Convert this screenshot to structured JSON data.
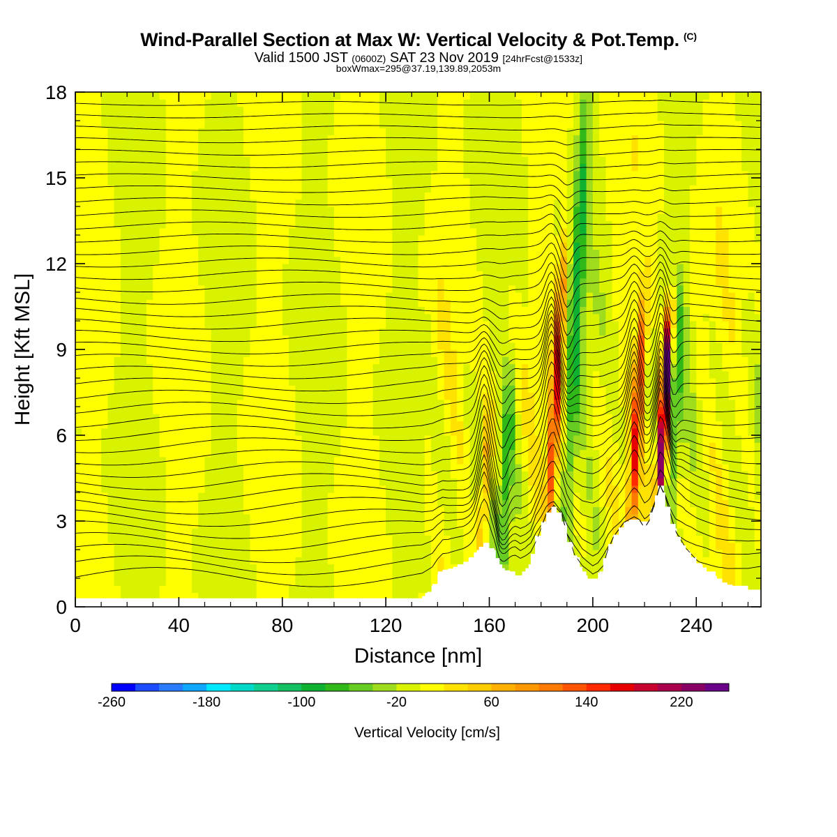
{
  "header": {
    "title": "Wind-Parallel Section at Max W: Vertical Velocity & Pot.Temp.",
    "copyright_mark": "(C)",
    "valid_prefix": "Valid 1500 JST",
    "valid_utc": "(0600Z)",
    "valid_date": "SAT 23 Nov 2019",
    "forecast_info": "[24hrFcst@1533z]",
    "box_info": "boxWmax=295@37.19,139.89,2053m"
  },
  "chart_data": {
    "type": "heatmap",
    "xlabel": "Distance [nm]",
    "ylabel": "Height [Kft MSL]",
    "xlim": [
      0,
      265
    ],
    "ylim": [
      0,
      18
    ],
    "x_ticks": [
      "0",
      "40",
      "80",
      "120",
      "160",
      "200",
      "240"
    ],
    "y_ticks": [
      "0",
      "3",
      "6",
      "9",
      "12",
      "15",
      "18"
    ],
    "colorbar": {
      "label": "Vertical Velocity [cm/s]",
      "min": -260,
      "max": 260,
      "step": 20,
      "tick_labels": [
        "-260",
        "-180",
        "-100",
        "-20",
        "60",
        "140",
        "220"
      ],
      "colors": [
        "#0000ff",
        "#1c4cff",
        "#2a7cff",
        "#10a8ff",
        "#00e8ff",
        "#00d8c8",
        "#10d090",
        "#14c060",
        "#10b030",
        "#30b818",
        "#66cc22",
        "#a0dc1e",
        "#d8f200",
        "#ffff00",
        "#ffe200",
        "#ffcc00",
        "#ffb000",
        "#ff9800",
        "#ff7a00",
        "#ff5400",
        "#ff2a00",
        "#e80000",
        "#c80030",
        "#a8004a",
        "#880064",
        "#6a0088"
      ]
    },
    "terrain_profile": {
      "x_nm": [
        0,
        134,
        138,
        140,
        142,
        144,
        150,
        154,
        158,
        162,
        164,
        166,
        170,
        172,
        174,
        176,
        178,
        180,
        182,
        185,
        188,
        190,
        193,
        196,
        198,
        200,
        202,
        204,
        206,
        208,
        212,
        214,
        216,
        218,
        220,
        222,
        224,
        226,
        228,
        230,
        232,
        236,
        240,
        244,
        248,
        252,
        256,
        260,
        265
      ],
      "height_kft": [
        0.3,
        0.3,
        0.6,
        1.0,
        1.3,
        1.3,
        1.5,
        1.8,
        2.2,
        2.0,
        1.4,
        1.3,
        1.2,
        1.0,
        1.2,
        1.5,
        2.2,
        2.7,
        3.2,
        3.5,
        3.2,
        2.5,
        1.8,
        1.2,
        1.0,
        0.8,
        1.0,
        1.4,
        2.0,
        2.4,
        2.9,
        3.0,
        3.1,
        3.0,
        2.7,
        3.0,
        3.6,
        4.2,
        3.8,
        3.2,
        2.6,
        2.0,
        1.6,
        1.3,
        1.0,
        0.8,
        0.7,
        0.6,
        0.6
      ]
    },
    "updraft_cores": [
      {
        "x": 157,
        "y_bottom": 2.0,
        "y_top": 6.5,
        "peak_cm_s": 80
      },
      {
        "x": 183,
        "y_bottom": 3.0,
        "y_top": 12.0,
        "peak_cm_s": 150
      },
      {
        "x": 215,
        "y_bottom": 3.0,
        "y_top": 10.5,
        "peak_cm_s": 150
      },
      {
        "x": 226,
        "y_bottom": 4.0,
        "y_top": 10.0,
        "peak_cm_s": 295
      }
    ],
    "downdraft_cores": [
      {
        "x": 165,
        "y_bottom": 1.5,
        "y_top": 8.0,
        "peak_cm_s": -60
      },
      {
        "x": 190,
        "y_bottom": 3.0,
        "y_top": 18.0,
        "peak_cm_s": -80
      },
      {
        "x": 230,
        "y_bottom": 4.0,
        "y_top": 11.0,
        "peak_cm_s": -60
      }
    ],
    "theta_contours": {
      "count": 40,
      "lowest_kft": 0.9,
      "highest_kft": 17.6
    }
  }
}
